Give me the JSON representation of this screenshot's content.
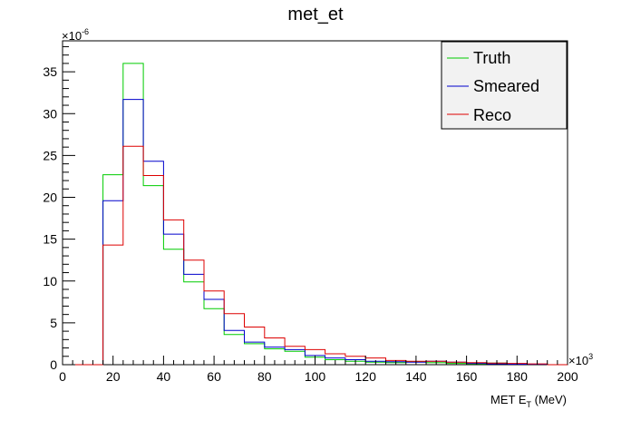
{
  "chart_data": {
    "type": "line",
    "title": "met_et",
    "xlabel": "MET E",
    "xlabel_sub": "T",
    "xlabel_units": " (MeV)",
    "x_multiplier": "×10",
    "x_multiplier_exp": "3",
    "y_multiplier": "×10",
    "y_multiplier_exp": "-6",
    "xlim": [
      0,
      200
    ],
    "ylim": [
      0,
      38.7
    ],
    "x_ticks": [
      0,
      20,
      40,
      60,
      80,
      100,
      120,
      140,
      160,
      180,
      200
    ],
    "y_ticks": [
      0,
      5,
      10,
      15,
      20,
      25,
      30,
      35
    ],
    "bin_edges": [
      0,
      8,
      16,
      24,
      32,
      40,
      48,
      56,
      64,
      72,
      80,
      88,
      96,
      104,
      112,
      120,
      128,
      136,
      144,
      152,
      160,
      168,
      176,
      184,
      192,
      200
    ],
    "legend_position": "top-right",
    "series": [
      {
        "name": "Truth",
        "color": "#00cc00",
        "values": [
          0,
          0,
          22.7,
          36.0,
          21.4,
          13.8,
          9.9,
          6.7,
          3.6,
          2.5,
          1.9,
          1.6,
          0.9,
          0.6,
          0.4,
          0.3,
          0.25,
          0.35,
          0.25,
          0.15,
          0.1,
          0.2,
          0.05,
          0.05,
          0
        ]
      },
      {
        "name": "Smeared",
        "color": "#0000cc",
        "values": [
          0,
          0,
          19.6,
          31.7,
          24.3,
          15.6,
          10.8,
          7.8,
          4.1,
          2.7,
          2.1,
          1.8,
          1.1,
          0.8,
          0.6,
          0.4,
          0.35,
          0.3,
          0.4,
          0.3,
          0.15,
          0.1,
          0.05,
          0.05,
          0
        ]
      },
      {
        "name": "Reco",
        "color": "#dd0000",
        "values": [
          0,
          0,
          14.3,
          26.1,
          22.6,
          17.3,
          12.5,
          8.8,
          6.1,
          4.5,
          3.2,
          2.2,
          1.8,
          1.3,
          1.0,
          0.8,
          0.5,
          0.4,
          0.4,
          0.3,
          0.25,
          0.2,
          0.15,
          0.1,
          0
        ]
      }
    ]
  }
}
